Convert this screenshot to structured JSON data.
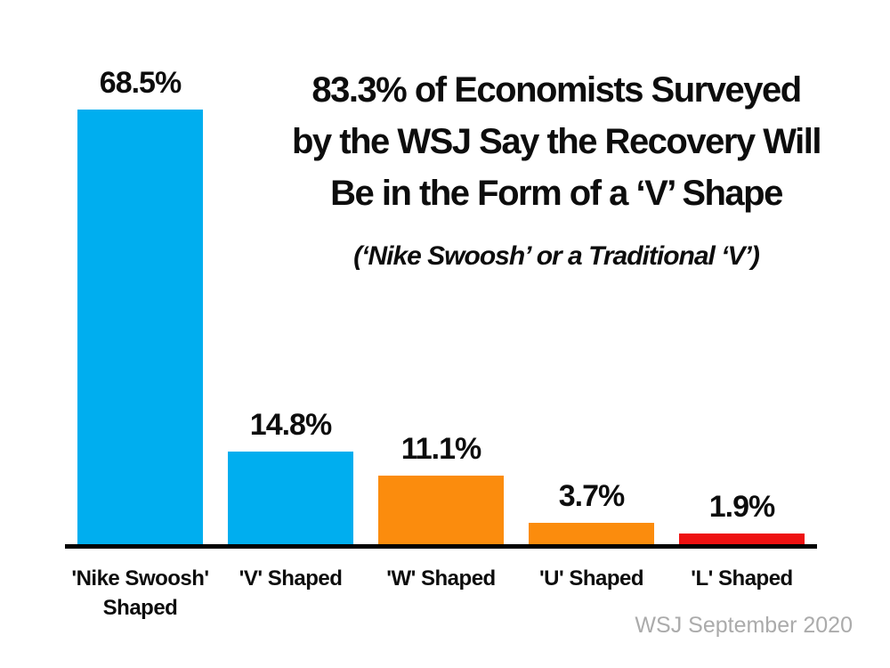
{
  "title": {
    "line1": "83.3% of Economists Surveyed",
    "line2": "by the WSJ Say the Recovery Will",
    "line3": "Be in the Form of a ‘V’ Shape",
    "subtitle": "(‘Nike Swoosh’ or a Traditional ‘V’)"
  },
  "footer": {
    "source": "WSJ September 2020",
    "color": "#ababab"
  },
  "chart_data": {
    "type": "bar",
    "title": "83.3% of Economists Surveyed by the WSJ Say the Recovery Will Be in the Form of a ‘V’ Shape",
    "subtitle": "(‘Nike Swoosh’ or a Traditional ‘V’)",
    "categories": [
      "'Nike Swoosh' Shaped",
      "'V' Shaped",
      "'W' Shaped",
      "'U' Shaped",
      "'L' Shaped"
    ],
    "values": [
      68.5,
      14.8,
      11.1,
      3.7,
      1.9
    ],
    "value_labels": [
      "68.5%",
      "14.8%",
      "11.1%",
      "3.7%",
      "1.9%"
    ],
    "bar_colors": [
      "#00aeef",
      "#00aeef",
      "#fb8c0d",
      "#fb8c0d",
      "#ee1111"
    ],
    "xlabel": "",
    "ylabel": "",
    "ylim": [
      0,
      70
    ],
    "grid": false,
    "legend": false,
    "axis_color": "#000000",
    "source": "WSJ September 2020"
  }
}
